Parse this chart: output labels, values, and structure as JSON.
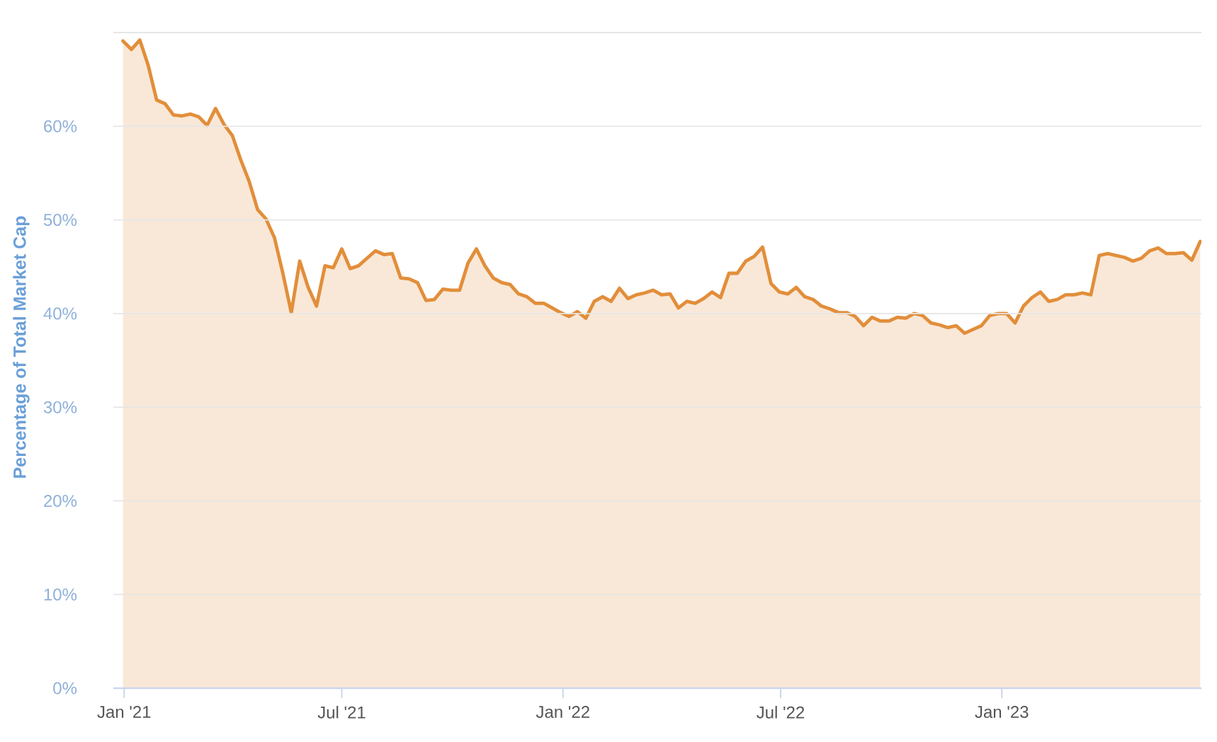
{
  "chart_data": {
    "type": "area",
    "ylabel": "Percentage of Total Market Cap",
    "x": [
      "2020-12-31",
      "2021-01-07",
      "2021-01-14",
      "2021-01-21",
      "2021-01-28",
      "2021-02-04",
      "2021-02-11",
      "2021-02-18",
      "2021-02-25",
      "2021-03-04",
      "2021-03-11",
      "2021-03-18",
      "2021-03-25",
      "2021-04-01",
      "2021-04-08",
      "2021-04-15",
      "2021-04-22",
      "2021-04-29",
      "2021-05-06",
      "2021-05-13",
      "2021-05-20",
      "2021-05-27",
      "2021-06-03",
      "2021-06-10",
      "2021-06-17",
      "2021-06-24",
      "2021-07-01",
      "2021-07-08",
      "2021-07-15",
      "2021-07-22",
      "2021-07-29",
      "2021-08-05",
      "2021-08-12",
      "2021-08-19",
      "2021-08-26",
      "2021-09-02",
      "2021-09-09",
      "2021-09-16",
      "2021-09-23",
      "2021-09-30",
      "2021-10-07",
      "2021-10-14",
      "2021-10-21",
      "2021-10-28",
      "2021-11-04",
      "2021-11-11",
      "2021-11-18",
      "2021-11-25",
      "2021-12-02",
      "2021-12-09",
      "2021-12-16",
      "2021-12-23",
      "2021-12-30",
      "2022-01-06",
      "2022-01-13",
      "2022-01-20",
      "2022-01-27",
      "2022-02-03",
      "2022-02-10",
      "2022-02-17",
      "2022-02-24",
      "2022-03-03",
      "2022-03-10",
      "2022-03-17",
      "2022-03-24",
      "2022-03-31",
      "2022-04-07",
      "2022-04-14",
      "2022-04-21",
      "2022-04-28",
      "2022-05-05",
      "2022-05-12",
      "2022-05-19",
      "2022-05-26",
      "2022-06-02",
      "2022-06-09",
      "2022-06-16",
      "2022-06-23",
      "2022-06-30",
      "2022-07-07",
      "2022-07-14",
      "2022-07-21",
      "2022-07-28",
      "2022-08-04",
      "2022-08-11",
      "2022-08-18",
      "2022-08-25",
      "2022-09-01",
      "2022-09-08",
      "2022-09-15",
      "2022-09-22",
      "2022-09-29",
      "2022-10-06",
      "2022-10-13",
      "2022-10-20",
      "2022-10-27",
      "2022-11-03",
      "2022-11-10",
      "2022-11-17",
      "2022-11-24",
      "2022-12-01",
      "2022-12-08",
      "2022-12-15",
      "2022-12-22",
      "2022-12-29",
      "2023-01-05",
      "2023-01-12",
      "2023-01-19",
      "2023-01-26",
      "2023-02-02",
      "2023-02-09",
      "2023-02-16",
      "2023-02-23",
      "2023-03-02",
      "2023-03-09",
      "2023-03-16",
      "2023-03-23",
      "2023-03-30",
      "2023-04-06",
      "2023-04-13",
      "2023-04-20",
      "2023-04-27",
      "2023-05-04",
      "2023-05-11",
      "2023-05-18",
      "2023-05-25",
      "2023-06-01",
      "2023-06-08",
      "2023-06-15"
    ],
    "series": [
      {
        "color": "#e28e3a",
        "values": [
          69.1,
          68.2,
          69.2,
          66.5,
          62.8,
          62.4,
          61.2,
          61.1,
          61.3,
          61.0,
          60.1,
          61.9,
          60.2,
          59.0,
          56.4,
          54.1,
          51.1,
          50.1,
          48.1,
          44.3,
          40.1,
          45.6,
          42.8,
          40.8,
          45.1,
          44.9,
          46.9,
          44.8,
          45.1,
          45.9,
          46.7,
          46.3,
          46.4,
          43.8,
          43.7,
          43.3,
          41.4,
          41.5,
          42.6,
          42.5,
          42.5,
          45.4,
          46.9,
          45.1,
          43.8,
          43.3,
          43.1,
          42.1,
          41.8,
          41.1,
          41.1,
          40.6,
          40.1,
          39.7,
          40.2,
          39.5,
          41.3,
          41.8,
          41.3,
          42.7,
          41.6,
          42.0,
          42.2,
          42.5,
          42.0,
          42.1,
          40.6,
          41.3,
          41.1,
          41.6,
          42.3,
          41.7,
          44.3,
          44.3,
          45.6,
          46.1,
          47.1,
          43.2,
          42.3,
          42.1,
          42.8,
          41.8,
          41.5,
          40.8,
          40.5,
          40.1,
          40.1,
          39.7,
          38.7,
          39.6,
          39.2,
          39.2,
          39.6,
          39.5,
          40.0,
          39.8,
          39.0,
          38.8,
          38.5,
          38.7,
          37.9,
          38.3,
          38.7,
          39.8,
          40.0,
          40.0,
          39.0,
          40.8,
          41.7,
          42.3,
          41.3,
          41.5,
          42.0,
          42.0,
          42.2,
          42.0,
          46.2,
          46.4,
          46.2,
          46.0,
          45.6,
          45.9,
          46.7,
          47.0,
          46.4,
          46.4,
          46.5,
          45.7,
          47.7
        ]
      }
    ],
    "xlim": [
      "2020-12-23",
      "2023-06-16"
    ],
    "xticks": [
      {
        "value": "2021-01-01",
        "label": "Jan '21"
      },
      {
        "value": "2021-07-01",
        "label": "Jul '21"
      },
      {
        "value": "2022-01-01",
        "label": "Jan '22"
      },
      {
        "value": "2022-07-01",
        "label": "Jul '22"
      },
      {
        "value": "2023-01-01",
        "label": "Jan '23"
      }
    ],
    "ylim": [
      0,
      70
    ],
    "yticks": [
      {
        "value": 0,
        "label": "0%"
      },
      {
        "value": 10,
        "label": "10%"
      },
      {
        "value": 20,
        "label": "20%"
      },
      {
        "value": 30,
        "label": "30%"
      },
      {
        "value": 40,
        "label": "40%"
      },
      {
        "value": 50,
        "label": "50%"
      },
      {
        "value": 60,
        "label": "60%"
      },
      {
        "value": 70,
        "label": null
      }
    ],
    "grid": "y"
  }
}
